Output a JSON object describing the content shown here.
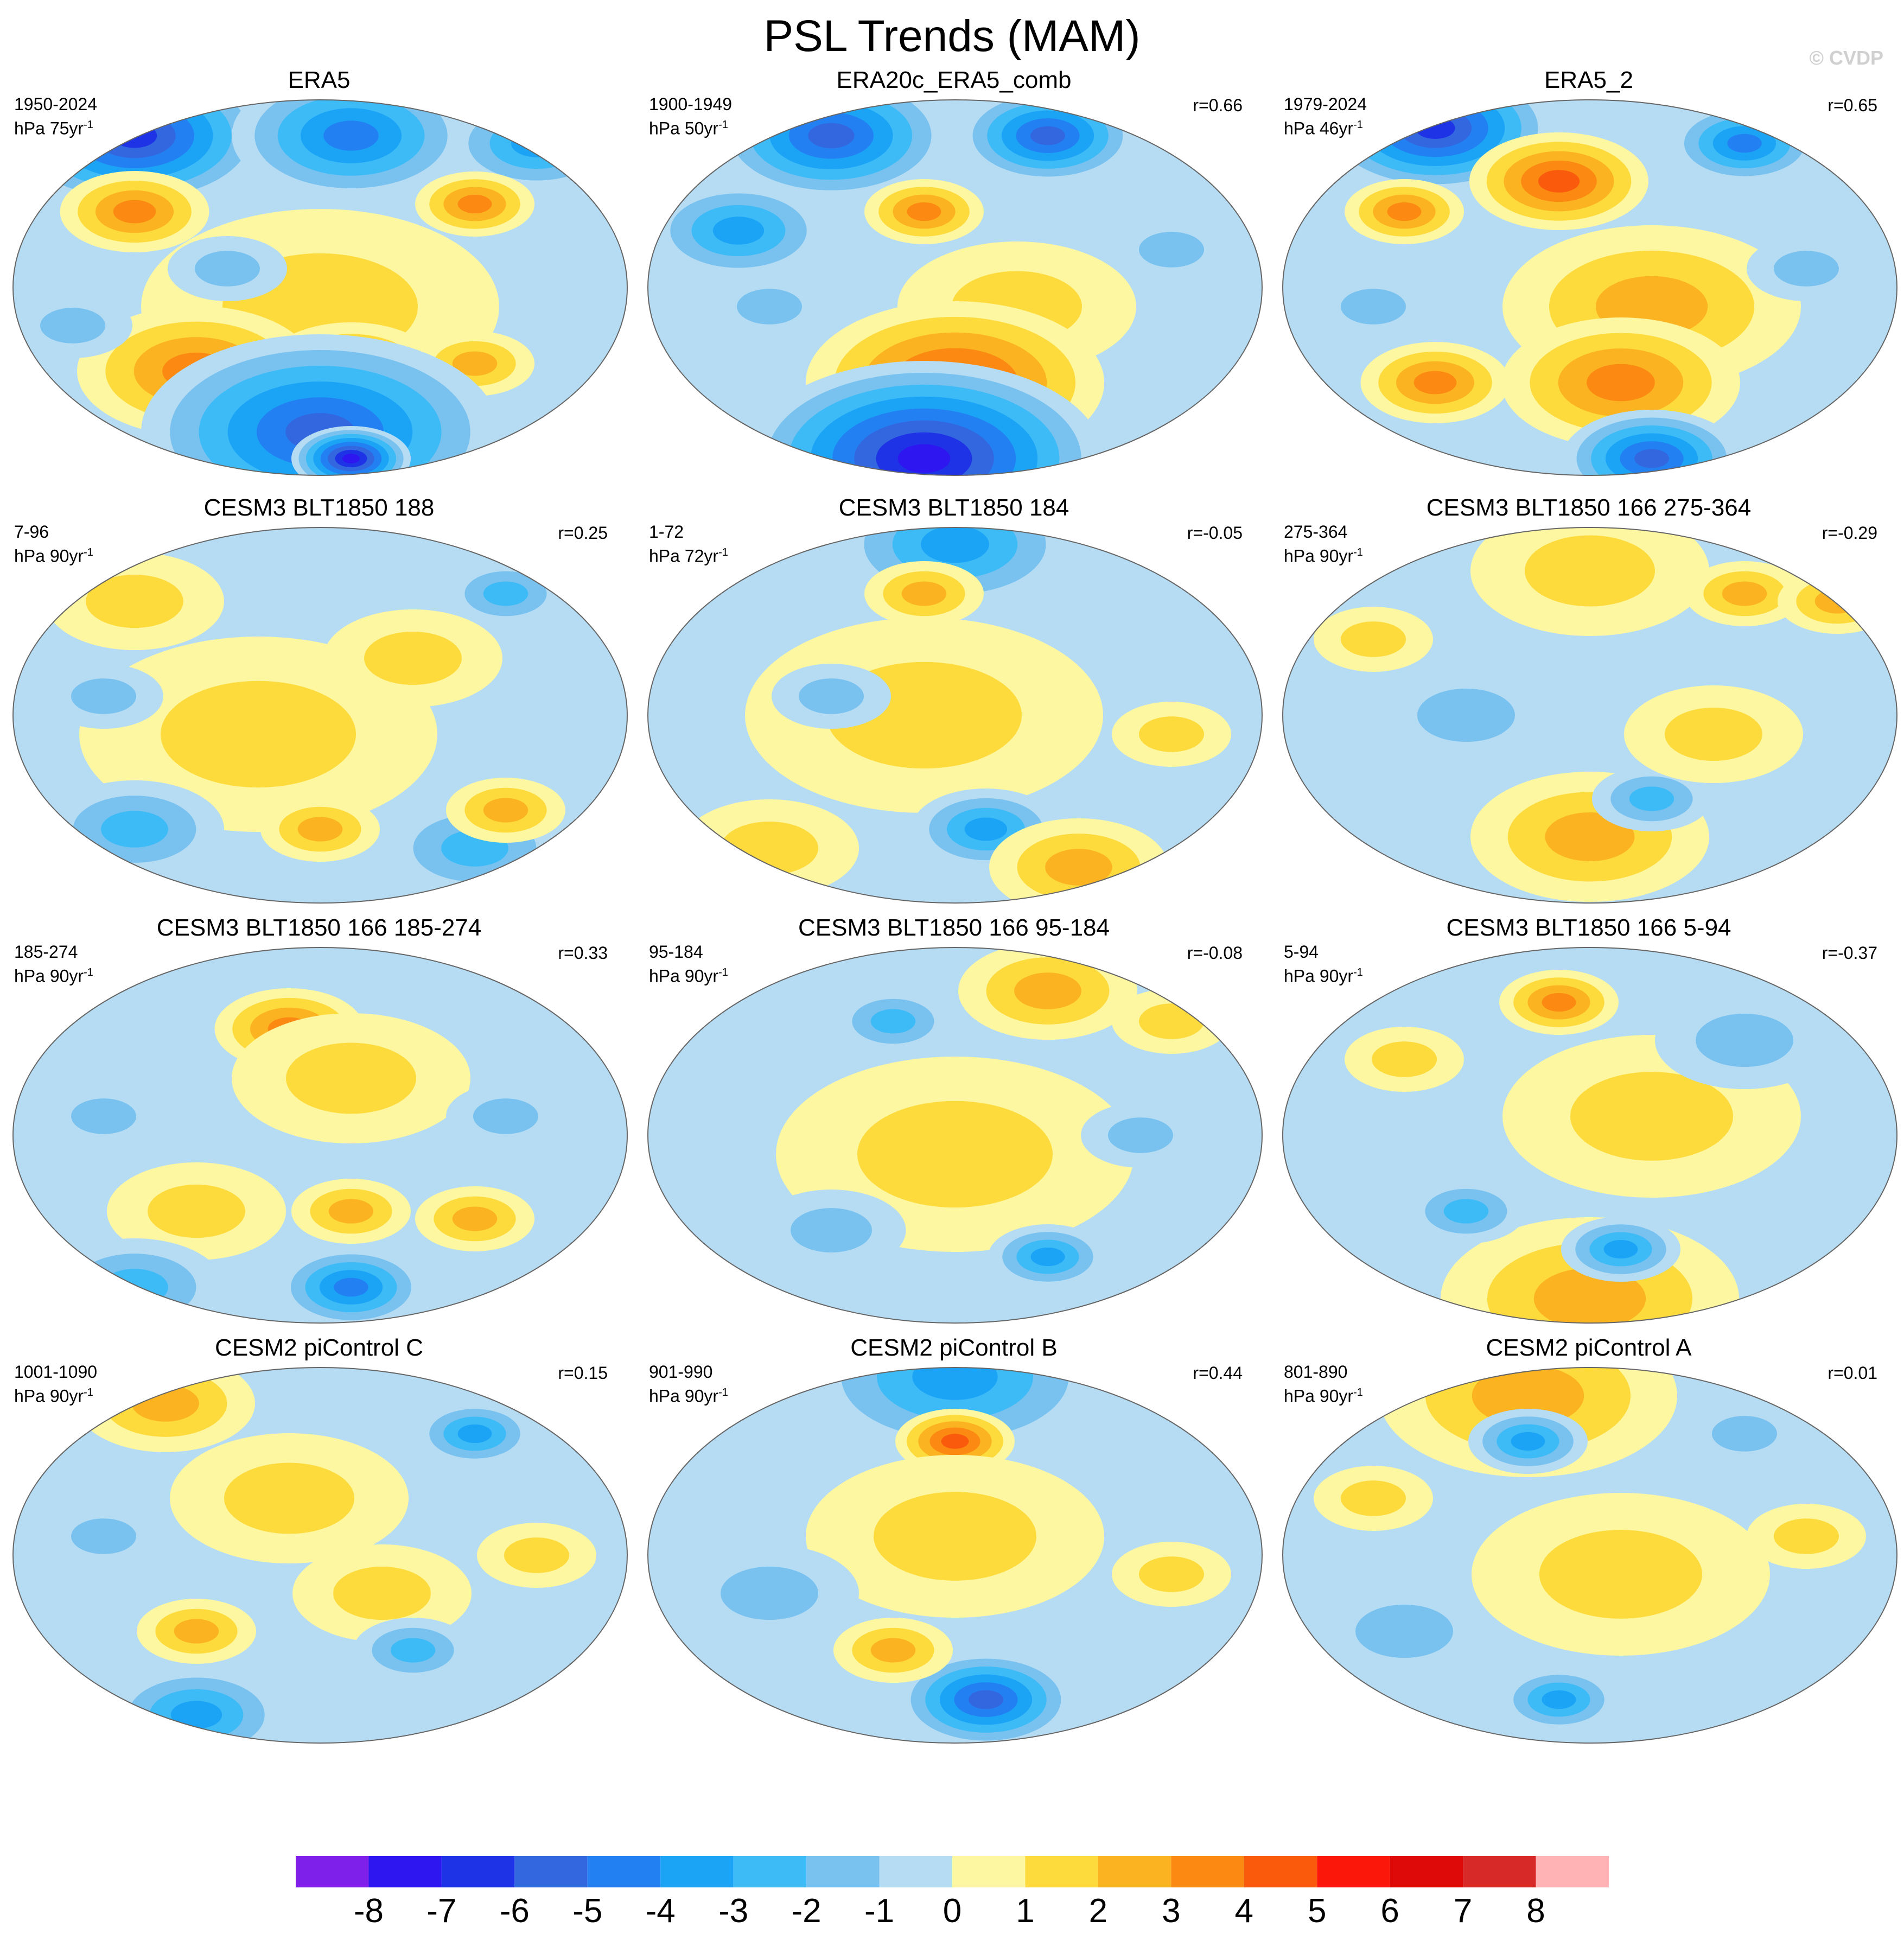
{
  "title": "PSL Trends (MAM)",
  "credit": "© CVDP",
  "panels": [
    {
      "title": "ERA5",
      "period": "1950-2024",
      "units": "hPa 75yr",
      "corr": "",
      "blobs": [
        [
          0.2,
          0.1,
          4.5,
          -6
        ],
        [
          0.55,
          0.1,
          4,
          -4
        ],
        [
          0.85,
          0.12,
          3,
          -3
        ],
        [
          0.2,
          0.3,
          2.5,
          3
        ],
        [
          0.75,
          0.28,
          2,
          3
        ],
        [
          0.5,
          0.55,
          6,
          1
        ],
        [
          0.3,
          0.72,
          4,
          3
        ],
        [
          0.55,
          0.72,
          3,
          3
        ],
        [
          0.75,
          0.7,
          2,
          2
        ],
        [
          0.5,
          0.88,
          6,
          -5
        ],
        [
          0.55,
          0.95,
          2,
          -7
        ],
        [
          0.1,
          0.6,
          2,
          -1
        ],
        [
          0.35,
          0.45,
          2,
          -1
        ]
      ]
    },
    {
      "title": "ERA20c_ERA5_comb",
      "period": "1900-1949",
      "units": "hPa 50yr",
      "corr": "r=0.66",
      "blobs": [
        [
          0.3,
          0.1,
          4,
          -5
        ],
        [
          0.65,
          0.1,
          3,
          -5
        ],
        [
          0.15,
          0.35,
          3,
          -3
        ],
        [
          0.45,
          0.3,
          2,
          3
        ],
        [
          0.6,
          0.55,
          4,
          1
        ],
        [
          0.5,
          0.75,
          5,
          4
        ],
        [
          0.45,
          0.95,
          6,
          -7
        ],
        [
          0.85,
          0.4,
          2,
          -1
        ],
        [
          0.2,
          0.55,
          2,
          -1
        ]
      ]
    },
    {
      "title": "ERA5_2",
      "period": "1979-2024",
      "units": "hPa 46yr",
      "corr": "r=0.65",
      "blobs": [
        [
          0.25,
          0.08,
          4,
          -6
        ],
        [
          0.75,
          0.12,
          2.5,
          -4
        ],
        [
          0.45,
          0.22,
          3,
          4
        ],
        [
          0.2,
          0.3,
          2,
          3
        ],
        [
          0.6,
          0.55,
          5,
          2
        ],
        [
          0.55,
          0.75,
          4,
          3
        ],
        [
          0.25,
          0.75,
          2.5,
          3
        ],
        [
          0.6,
          0.95,
          3,
          -5
        ],
        [
          0.85,
          0.45,
          2,
          -1
        ],
        [
          0.15,
          0.55,
          2,
          -1
        ]
      ]
    },
    {
      "title": "CESM3 BLT1850 188",
      "period": "7-96",
      "units": "hPa 90yr",
      "corr": "r=0.25",
      "blobs": [
        [
          0.4,
          0.55,
          6,
          1
        ],
        [
          0.2,
          0.2,
          3,
          1
        ],
        [
          0.8,
          0.18,
          2,
          -2
        ],
        [
          0.2,
          0.8,
          3,
          -2
        ],
        [
          0.75,
          0.85,
          3,
          -2
        ],
        [
          0.5,
          0.8,
          2,
          2
        ],
        [
          0.8,
          0.75,
          2,
          2
        ],
        [
          0.15,
          0.45,
          2,
          -1
        ],
        [
          0.65,
          0.35,
          3,
          1
        ]
      ]
    },
    {
      "title": "CESM3 BLT1850 184",
      "period": "1-72",
      "units": "hPa 72yr",
      "corr": "r=-0.05",
      "blobs": [
        [
          0.5,
          0.05,
          4,
          -3
        ],
        [
          0.45,
          0.5,
          6,
          1
        ],
        [
          0.45,
          0.18,
          2,
          2
        ],
        [
          0.55,
          0.8,
          2.5,
          -3
        ],
        [
          0.7,
          0.9,
          3,
          2
        ],
        [
          0.3,
          0.45,
          2,
          -1
        ],
        [
          0.85,
          0.55,
          2,
          1
        ],
        [
          0.2,
          0.85,
          3,
          1
        ]
      ]
    },
    {
      "title": "CESM3 BLT1850 166 275-364",
      "period": "275-364",
      "units": "hPa 90yr",
      "corr": "r=-0.29",
      "blobs": [
        [
          0.5,
          0.12,
          4,
          1
        ],
        [
          0.75,
          0.18,
          2,
          2
        ],
        [
          0.5,
          0.82,
          4,
          2
        ],
        [
          0.6,
          0.72,
          2,
          -2
        ],
        [
          0.3,
          0.5,
          3,
          -1
        ],
        [
          0.7,
          0.55,
          3,
          1
        ],
        [
          0.15,
          0.3,
          2,
          1
        ],
        [
          0.9,
          0.2,
          2,
          2
        ]
      ]
    },
    {
      "title": "CESM3 BLT1850 166 185-274",
      "period": "185-274",
      "units": "hPa 90yr",
      "corr": "r=0.33",
      "blobs": [
        [
          0.45,
          0.22,
          2.5,
          3
        ],
        [
          0.55,
          0.35,
          4,
          1
        ],
        [
          0.3,
          0.7,
          3,
          1
        ],
        [
          0.55,
          0.7,
          2,
          2
        ],
        [
          0.75,
          0.72,
          2,
          2
        ],
        [
          0.55,
          0.9,
          2.5,
          -4
        ],
        [
          0.2,
          0.9,
          3,
          -2
        ],
        [
          0.15,
          0.45,
          2,
          -1
        ],
        [
          0.8,
          0.45,
          2,
          -1
        ]
      ]
    },
    {
      "title": "CESM3 BLT1850 166 95-184",
      "period": "95-184",
      "units": "hPa 90yr",
      "corr": "r=-0.08",
      "blobs": [
        [
          0.65,
          0.12,
          3,
          2
        ],
        [
          0.4,
          0.2,
          2,
          -2
        ],
        [
          0.5,
          0.55,
          6,
          1
        ],
        [
          0.65,
          0.82,
          2,
          -3
        ],
        [
          0.3,
          0.75,
          2.5,
          -1
        ],
        [
          0.8,
          0.5,
          2,
          -1
        ],
        [
          0.85,
          0.2,
          2,
          1
        ]
      ]
    },
    {
      "title": "CESM3 BLT1850 166 5-94",
      "period": "5-94",
      "units": "hPa 90yr",
      "corr": "r=-0.37",
      "blobs": [
        [
          0.45,
          0.15,
          2,
          3
        ],
        [
          0.6,
          0.45,
          5,
          1
        ],
        [
          0.5,
          0.93,
          5,
          2
        ],
        [
          0.55,
          0.8,
          2,
          -3
        ],
        [
          0.3,
          0.7,
          2,
          -2
        ],
        [
          0.75,
          0.25,
          3,
          -1
        ],
        [
          0.2,
          0.3,
          2,
          1
        ]
      ]
    },
    {
      "title": "CESM2 piControl C",
      "period": "1001-1090",
      "units": "hPa 90yr",
      "corr": "r=0.15",
      "blobs": [
        [
          0.25,
          0.1,
          3,
          2
        ],
        [
          0.75,
          0.18,
          2,
          -3
        ],
        [
          0.45,
          0.35,
          4,
          1
        ],
        [
          0.6,
          0.6,
          3,
          1
        ],
        [
          0.3,
          0.7,
          2,
          2
        ],
        [
          0.65,
          0.75,
          2,
          -2
        ],
        [
          0.3,
          0.92,
          3,
          -3
        ],
        [
          0.15,
          0.45,
          2,
          -1
        ],
        [
          0.85,
          0.5,
          2,
          1
        ]
      ]
    },
    {
      "title": "CESM2 piControl B",
      "period": "901-990",
      "units": "hPa 90yr",
      "corr": "r=0.44",
      "blobs": [
        [
          0.5,
          0.03,
          5,
          -3
        ],
        [
          0.5,
          0.2,
          2,
          4
        ],
        [
          0.5,
          0.45,
          5,
          1
        ],
        [
          0.55,
          0.88,
          3,
          -5
        ],
        [
          0.4,
          0.75,
          2,
          2
        ],
        [
          0.2,
          0.6,
          3,
          -1
        ],
        [
          0.85,
          0.55,
          2,
          1
        ]
      ]
    },
    {
      "title": "CESM2 piControl A",
      "period": "801-890",
      "units": "hPa 90yr",
      "corr": "r=0.01",
      "blobs": [
        [
          0.4,
          0.08,
          5,
          2
        ],
        [
          0.4,
          0.2,
          2,
          -3
        ],
        [
          0.75,
          0.18,
          2,
          -1
        ],
        [
          0.55,
          0.55,
          5,
          1
        ],
        [
          0.45,
          0.88,
          2,
          -3
        ],
        [
          0.2,
          0.7,
          3,
          -1
        ],
        [
          0.85,
          0.45,
          2,
          1
        ],
        [
          0.15,
          0.35,
          2,
          1
        ]
      ]
    }
  ],
  "colorbar": {
    "labels": [
      "-8",
      "-7",
      "-6",
      "-5",
      "-4",
      "-3",
      "-2",
      "-1",
      "0",
      "1",
      "2",
      "3",
      "4",
      "5",
      "6",
      "7",
      "8"
    ],
    "colors": [
      "#7f1fea",
      "#2d16f0",
      "#1e33e6",
      "#3367e0",
      "#2280f2",
      "#1ba4f6",
      "#3dbbf6",
      "#79c2ef",
      "#b5dcf3",
      "#fef7a2",
      "#fedb3c",
      "#fbb321",
      "#fb8912",
      "#fa5a0c",
      "#fb170a",
      "#de0a0a",
      "#d82929",
      "#ffb3b5"
    ]
  }
}
